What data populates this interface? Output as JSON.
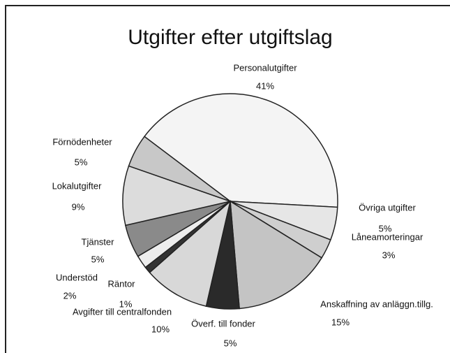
{
  "chart_data": {
    "type": "pie",
    "title": "Utgifter efter utgiftslag",
    "categories": [
      "Personalutgifter",
      "Övriga utgifter",
      "Låneamorteringar",
      "Anskaffning av anläggn.tillg.",
      "Överf. till fonder",
      "Avgifter till centralfonden",
      "Räntor",
      "Understöd",
      "Tjänster",
      "Lokalutgifter",
      "Förnödenheter"
    ],
    "values": [
      41,
      5,
      3,
      15,
      5,
      10,
      1,
      2,
      5,
      9,
      5
    ],
    "value_labels": [
      "41%",
      "5%",
      "3%",
      "15%",
      "5%",
      "10%",
      "1%",
      "2%",
      "5%",
      "9%",
      "5%"
    ],
    "colors": [
      "#f4f4f4",
      "#e6e6e6",
      "#cfcfcf",
      "#c4c4c4",
      "#2a2a2a",
      "#d8d8d8",
      "#333333",
      "#ededed",
      "#8a8a8a",
      "#dcdcdc",
      "#c8c8c8"
    ]
  }
}
